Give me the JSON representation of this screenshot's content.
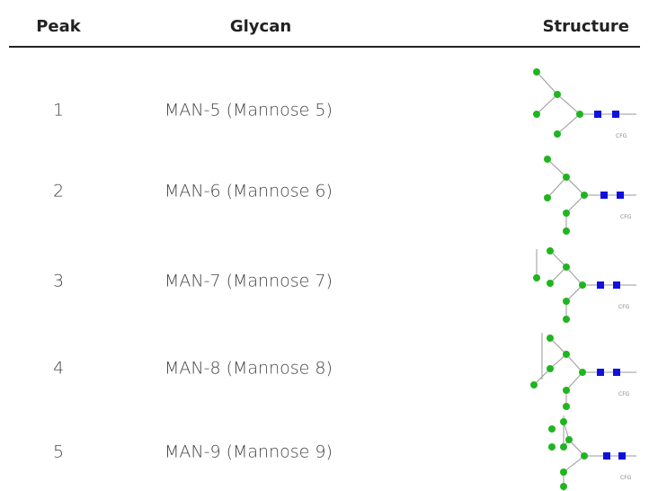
{
  "table": {
    "header": [
      "Peak",
      "Glycan",
      "Structure"
    ],
    "rows": [
      [
        "1",
        "MAN-5 (Mannose 5)",
        "CFG"
      ],
      [
        "2",
        "MAN-6 (Mannose 6)",
        "CFG"
      ],
      [
        "3",
        "MAN-7 (Mannose 7)",
        "CFG"
      ],
      [
        "4",
        "MAN-8 (Mannose 8)",
        "CFG"
      ],
      [
        "5",
        "MAN-9 (Mannose 9)",
        "CFG"
      ]
    ]
  }
}
